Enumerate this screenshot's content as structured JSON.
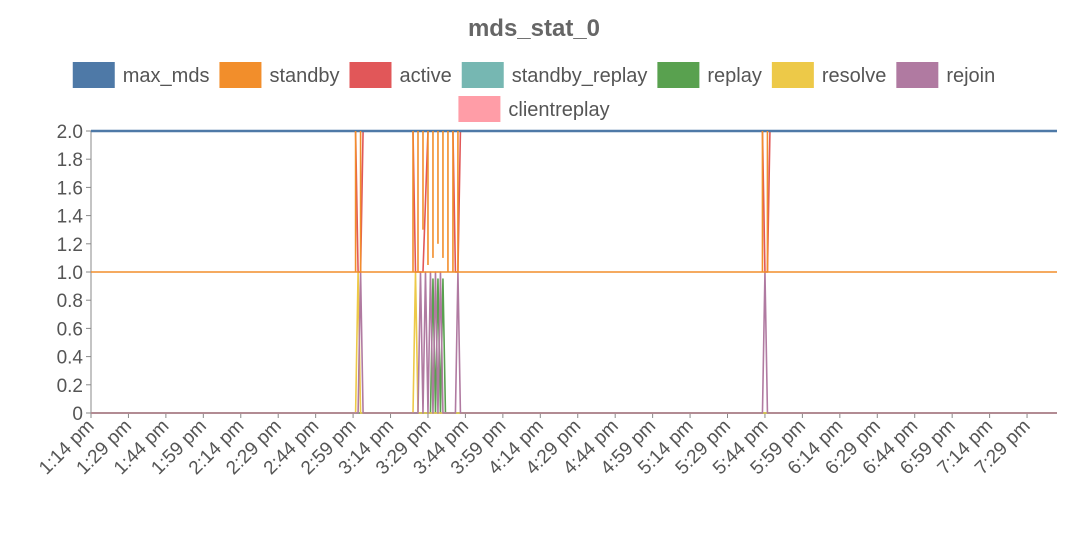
{
  "chart_data": {
    "type": "line",
    "title": "mds_stat_0",
    "xlabel": "",
    "ylabel": "",
    "ylim": [
      0,
      2
    ],
    "yticks": [
      "0",
      "0.2",
      "0.4",
      "0.6",
      "0.8",
      "1.0",
      "1.2",
      "1.4",
      "1.6",
      "1.8",
      "2.0"
    ],
    "x_range_minutes": [
      797,
      1184
    ],
    "xticks": [
      "1:14 pm",
      "1:29 pm",
      "1:44 pm",
      "1:59 pm",
      "2:14 pm",
      "2:29 pm",
      "2:44 pm",
      "2:59 pm",
      "3:14 pm",
      "3:29 pm",
      "3:44 pm",
      "3:59 pm",
      "4:14 pm",
      "4:29 pm",
      "4:44 pm",
      "4:59 pm",
      "5:14 pm",
      "5:29 pm",
      "5:44 pm",
      "5:59 pm",
      "6:14 pm",
      "6:29 pm",
      "6:44 pm",
      "6:59 pm",
      "7:14 pm",
      "7:29 pm"
    ],
    "grid": false,
    "legend_position": "top",
    "series": [
      {
        "name": "max_mds",
        "color": "#4e79a7",
        "points": [
          [
            797,
            2
          ],
          [
            1184,
            2
          ]
        ]
      },
      {
        "name": "standby",
        "color": "#f28e2b",
        "points": [
          [
            797,
            1
          ],
          [
            1184,
            1
          ]
        ]
      },
      {
        "name": "active",
        "color": "#e15759",
        "points": [
          [
            797,
            2
          ],
          [
            903,
            2
          ],
          [
            904,
            1
          ],
          [
            905,
            1
          ],
          [
            906,
            2
          ],
          [
            926,
            2
          ],
          [
            927,
            1
          ],
          [
            930,
            1
          ],
          [
            932,
            2
          ],
          [
            942,
            2
          ],
          [
            943,
            1
          ],
          [
            944,
            1
          ],
          [
            945,
            2
          ],
          [
            1066,
            2
          ],
          [
            1067,
            1
          ],
          [
            1068,
            1
          ],
          [
            1069,
            2
          ],
          [
            1184,
            2
          ]
        ]
      },
      {
        "name": "standby_replay",
        "color": "#76b7b2",
        "points": [
          [
            797,
            0
          ],
          [
            1184,
            0
          ]
        ]
      },
      {
        "name": "replay",
        "color": "#59a14f",
        "points": [
          [
            797,
            0
          ],
          [
            933,
            0
          ],
          [
            934,
            0.95
          ],
          [
            935,
            0
          ],
          [
            936,
            0.95
          ],
          [
            937,
            0
          ],
          [
            938,
            0.95
          ],
          [
            939,
            0
          ],
          [
            1184,
            0
          ]
        ]
      },
      {
        "name": "resolve",
        "color": "#edc948",
        "points": [
          [
            797,
            0
          ],
          [
            903,
            0
          ],
          [
            904,
            1
          ],
          [
            905,
            0
          ],
          [
            926,
            0
          ],
          [
            927,
            1
          ],
          [
            928,
            0
          ],
          [
            1184,
            0
          ]
        ]
      },
      {
        "name": "rejoin",
        "color": "#b07aa1",
        "points": [
          [
            797,
            0
          ],
          [
            904,
            0
          ],
          [
            905,
            1
          ],
          [
            906,
            0
          ],
          [
            928,
            0
          ],
          [
            929,
            1
          ],
          [
            930,
            0
          ],
          [
            931,
            1
          ],
          [
            932,
            0
          ],
          [
            933,
            1
          ],
          [
            934,
            0
          ],
          [
            935,
            1
          ],
          [
            936,
            0
          ],
          [
            937,
            1
          ],
          [
            938,
            0
          ],
          [
            943,
            0
          ],
          [
            944,
            1
          ],
          [
            945,
            0
          ],
          [
            1066,
            0
          ],
          [
            1067,
            1
          ],
          [
            1068,
            0
          ],
          [
            1184,
            0
          ]
        ]
      },
      {
        "name": "clientreplay",
        "color": "#ff9da7",
        "points": [
          [
            797,
            0
          ],
          [
            1184,
            0
          ]
        ]
      }
    ],
    "standby_extra_spikes": [
      [
        903,
        1,
        2
      ],
      [
        905,
        1,
        2
      ],
      [
        926,
        1,
        2
      ],
      [
        928,
        1,
        2
      ],
      [
        930,
        1.3,
        2
      ],
      [
        932,
        1.05,
        2
      ],
      [
        934,
        1.1,
        2
      ],
      [
        936,
        1.2,
        2
      ],
      [
        938,
        1.1,
        2
      ],
      [
        940,
        1,
        2
      ],
      [
        942,
        1,
        2
      ],
      [
        944,
        1,
        2
      ],
      [
        1066,
        1,
        2
      ],
      [
        1068,
        1,
        2
      ]
    ]
  }
}
